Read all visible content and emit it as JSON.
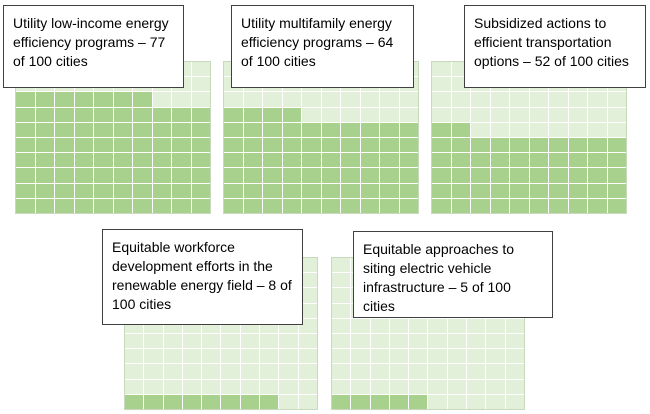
{
  "chart_data": [
    {
      "type": "waffle",
      "label": "Utility low-income energy efficiency programs – 77 of 100 cities",
      "value": 77,
      "total": 100,
      "fill_color": "#a9d18e",
      "empty_color": "#e2efd9"
    },
    {
      "type": "waffle",
      "label": "Utility multifamily energy efficiency programs – 64 of 100 cities",
      "value": 64,
      "total": 100,
      "fill_color": "#a9d18e",
      "empty_color": "#e2efd9"
    },
    {
      "type": "waffle",
      "label": "Subsidized actions to efficient transportation options – 52 of 100 cities",
      "value": 52,
      "total": 100,
      "fill_color": "#a9d18e",
      "empty_color": "#e2efd9"
    },
    {
      "type": "waffle",
      "label": "Equitable workforce development efforts in the renewable energy field – 8 of 100 cities",
      "value": 8,
      "total": 100,
      "fill_color": "#a9d18e",
      "empty_color": "#e2efd9"
    },
    {
      "type": "waffle",
      "label": "Equitable approaches to siting electric vehicle infrastructure – 5 of 100 cities",
      "value": 5,
      "total": 100,
      "fill_color": "#a9d18e",
      "empty_color": "#e2efd9"
    }
  ]
}
